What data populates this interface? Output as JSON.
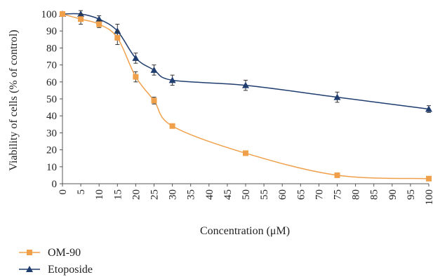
{
  "chart_data": {
    "type": "line",
    "title": "",
    "xlabel": "Concentration (μM)",
    "ylabel": "Viability of cells (% of control)",
    "xlim": [
      0,
      100
    ],
    "ylim": [
      0,
      100
    ],
    "x_ticks": [
      "0",
      "5",
      "10",
      "15",
      "20",
      "25",
      "30",
      "35",
      "40",
      "45",
      "50",
      "55",
      "60",
      "65",
      "70",
      "75",
      "80",
      "85",
      "90",
      "95",
      "100"
    ],
    "y_ticks": [
      "0",
      "10",
      "20",
      "30",
      "40",
      "50",
      "60",
      "70",
      "80",
      "90",
      "100"
    ],
    "grid": false,
    "legend_position": "bottom-left",
    "series": [
      {
        "name": "OM-90",
        "color": "#f0a04b",
        "marker": "square",
        "x": [
          0,
          5,
          10,
          15,
          20,
          25,
          30,
          50,
          75,
          100
        ],
        "y": [
          100,
          97,
          94,
          86,
          63,
          49,
          34,
          18,
          5,
          3
        ],
        "err": [
          1,
          3,
          2,
          4,
          3,
          2,
          1,
          1,
          1,
          1
        ]
      },
      {
        "name": "Etoposide",
        "color": "#1f3d6e",
        "marker": "triangle",
        "x": [
          0,
          5,
          10,
          15,
          20,
          25,
          30,
          50,
          75,
          100
        ],
        "y": [
          100,
          100,
          97,
          90,
          74,
          67,
          61,
          58,
          51,
          44
        ],
        "err": [
          1,
          2,
          2,
          4,
          3,
          3,
          3,
          3,
          3,
          2
        ]
      }
    ]
  }
}
